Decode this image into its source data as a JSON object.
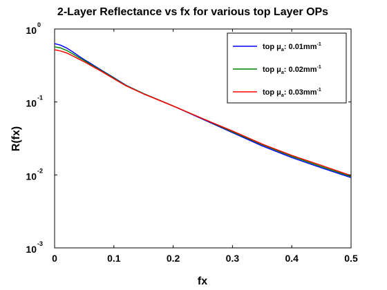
{
  "chart_data": {
    "type": "line",
    "title": "2-Layer Reflectance vs fx for various top Layer OPs",
    "xlabel": "fx",
    "ylabel": "R(fx)",
    "xlim": [
      0,
      0.5
    ],
    "ylim": [
      0.001,
      1
    ],
    "y_scale": "log",
    "grid": false,
    "legend_position": "top-right",
    "x_ticks": [
      "0",
      "0.1",
      "0.2",
      "0.3",
      "0.4",
      "0.5"
    ],
    "x_tick_values": [
      0,
      0.1,
      0.2,
      0.3,
      0.4,
      0.5
    ],
    "y_ticks": [
      {
        "base": "10",
        "exp": "-3",
        "value": 0.001
      },
      {
        "base": "10",
        "exp": "-2",
        "value": 0.01
      },
      {
        "base": "10",
        "exp": "-1",
        "value": 0.1
      },
      {
        "base": "10",
        "exp": "0",
        "value": 1
      }
    ],
    "x": [
      0,
      0.01,
      0.02,
      0.03,
      0.04,
      0.05,
      0.06,
      0.08,
      0.1,
      0.12,
      0.15,
      0.2,
      0.25,
      0.3,
      0.35,
      0.4,
      0.45,
      0.5
    ],
    "series": [
      {
        "legend_prefix": "top μ",
        "legend_sub": "a",
        "legend_value": ": 0.01mm",
        "legend_sup": "-1",
        "color": "#0000ff",
        "values": [
          0.63,
          0.6,
          0.55,
          0.49,
          0.43,
          0.38,
          0.34,
          0.27,
          0.215,
          0.17,
          0.13,
          0.088,
          0.058,
          0.038,
          0.025,
          0.0173,
          0.0125,
          0.0092
        ]
      },
      {
        "legend_prefix": "top μ",
        "legend_sub": "a",
        "legend_value": ": 0.02mm",
        "legend_sup": "-1",
        "color": "#008000",
        "values": [
          0.57,
          0.55,
          0.51,
          0.46,
          0.41,
          0.37,
          0.33,
          0.265,
          0.212,
          0.169,
          0.13,
          0.088,
          0.059,
          0.039,
          0.026,
          0.018,
          0.013,
          0.0095
        ]
      },
      {
        "legend_prefix": "top μ",
        "legend_sub": "a",
        "legend_value": ": 0.03mm",
        "legend_sup": "-1",
        "color": "#ff0000",
        "values": [
          0.52,
          0.5,
          0.47,
          0.43,
          0.39,
          0.355,
          0.32,
          0.26,
          0.208,
          0.167,
          0.129,
          0.088,
          0.059,
          0.04,
          0.0265,
          0.0185,
          0.0135,
          0.0098
        ]
      }
    ]
  }
}
